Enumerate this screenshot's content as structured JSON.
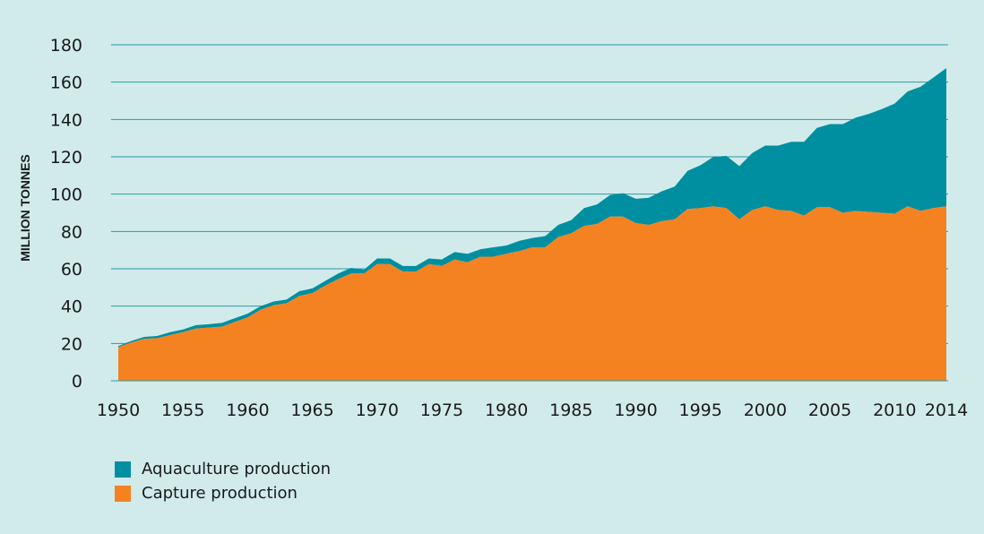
{
  "chart_data": {
    "type": "area",
    "stacked": true,
    "ylabel": "MILLION TONNES",
    "ylim": [
      0,
      180
    ],
    "yticks": [
      0,
      20,
      40,
      60,
      80,
      100,
      120,
      140,
      160,
      180
    ],
    "xticks": [
      "1950",
      "1955",
      "1960",
      "1965",
      "1970",
      "1975",
      "1980",
      "1985",
      "1990",
      "1995",
      "2000",
      "2005",
      "2010",
      "2014"
    ],
    "grid": "horizontal",
    "legend_position": "bottom-left",
    "x": [
      1950,
      1951,
      1952,
      1953,
      1954,
      1955,
      1956,
      1957,
      1958,
      1959,
      1960,
      1961,
      1962,
      1963,
      1964,
      1965,
      1966,
      1967,
      1968,
      1969,
      1970,
      1971,
      1972,
      1973,
      1974,
      1975,
      1976,
      1977,
      1978,
      1979,
      1980,
      1981,
      1982,
      1983,
      1984,
      1985,
      1986,
      1987,
      1988,
      1989,
      1990,
      1991,
      1992,
      1993,
      1994,
      1995,
      1996,
      1997,
      1998,
      1999,
      2000,
      2001,
      2002,
      2003,
      2004,
      2005,
      2006,
      2007,
      2008,
      2009,
      2010,
      2011,
      2012,
      2013,
      2014
    ],
    "series": [
      {
        "name": "Capture production",
        "color": "#f58220",
        "values": [
          18,
          20.5,
          22.5,
          22.8,
          24.5,
          26,
          28,
          28.5,
          29,
          31.5,
          34,
          38,
          40.5,
          41.5,
          45.5,
          47,
          51,
          54.5,
          57.5,
          57.5,
          62.5,
          62.5,
          58.5,
          58.5,
          62.5,
          61.5,
          65,
          63.5,
          66.5,
          66.5,
          68,
          69.5,
          71.5,
          71.5,
          77,
          79,
          83,
          84,
          88,
          88,
          84.5,
          83.5,
          85.5,
          86.5,
          92,
          92.5,
          93.5,
          92.5,
          86.5,
          91.5,
          93.5,
          91.5,
          91,
          88.5,
          93,
          93,
          90,
          91,
          90.5,
          90,
          89.5,
          93.5,
          91,
          92.5,
          93.5
        ]
      },
      {
        "name": "Aquaculture production",
        "color": "#008fa0",
        "values": [
          0.6,
          0.8,
          1,
          1.2,
          1.5,
          1.5,
          1.8,
          1.8,
          2,
          2,
          2,
          2,
          2,
          2,
          2.5,
          2.5,
          2.5,
          3,
          3,
          2,
          3,
          3,
          3,
          3,
          3,
          3.5,
          4,
          4.5,
          4,
          5,
          4.5,
          5.5,
          5,
          6,
          6.5,
          7,
          9.5,
          10.5,
          11.5,
          12.5,
          13,
          14.5,
          16,
          17.5,
          20.5,
          23,
          26.5,
          28,
          28.5,
          30.5,
          32.5,
          34.5,
          37,
          39.5,
          42.5,
          44.5,
          47.5,
          50,
          52.5,
          55.5,
          59,
          61.5,
          66.5,
          70,
          74
        ]
      }
    ]
  }
}
